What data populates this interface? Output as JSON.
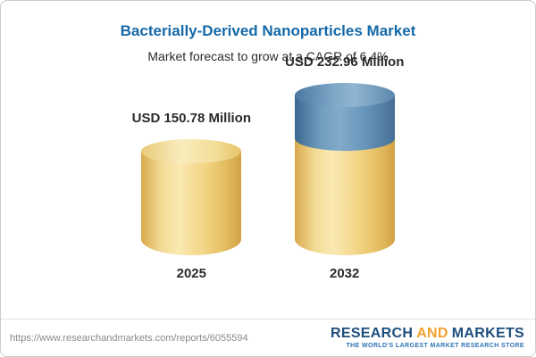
{
  "header": {
    "title": "Bacterially-Derived Nanoparticles Market",
    "subtitle": "Market forecast to grow at a CAGR of 6.4%"
  },
  "chart_data": {
    "type": "bar",
    "title": "Bacterially-Derived Nanoparticles Market",
    "subtitle": "Market forecast to grow at a CAGR of 6.4%",
    "categories": [
      "2025",
      "2032"
    ],
    "values": [
      150.78,
      232.96
    ],
    "value_labels": [
      "USD 150.78 Million",
      "USD 232.96 Million"
    ],
    "unit": "USD Million",
    "cagr_percent": 6.4,
    "ylim": [
      0,
      232.96
    ],
    "legend": "none",
    "grid": false,
    "colors": {
      "bar_base": "#F2D382",
      "bar_2032_top_segment": "#6F9CBE",
      "title_text": "#1569A8"
    }
  },
  "footer": {
    "url": "https://www.researchandmarkets.com/reports/6055594",
    "logo": {
      "research": "RESEARCH",
      "and": "AND",
      "markets": "MARKETS",
      "tagline": "THE WORLD'S LARGEST MARKET RESEARCH STORE"
    }
  }
}
